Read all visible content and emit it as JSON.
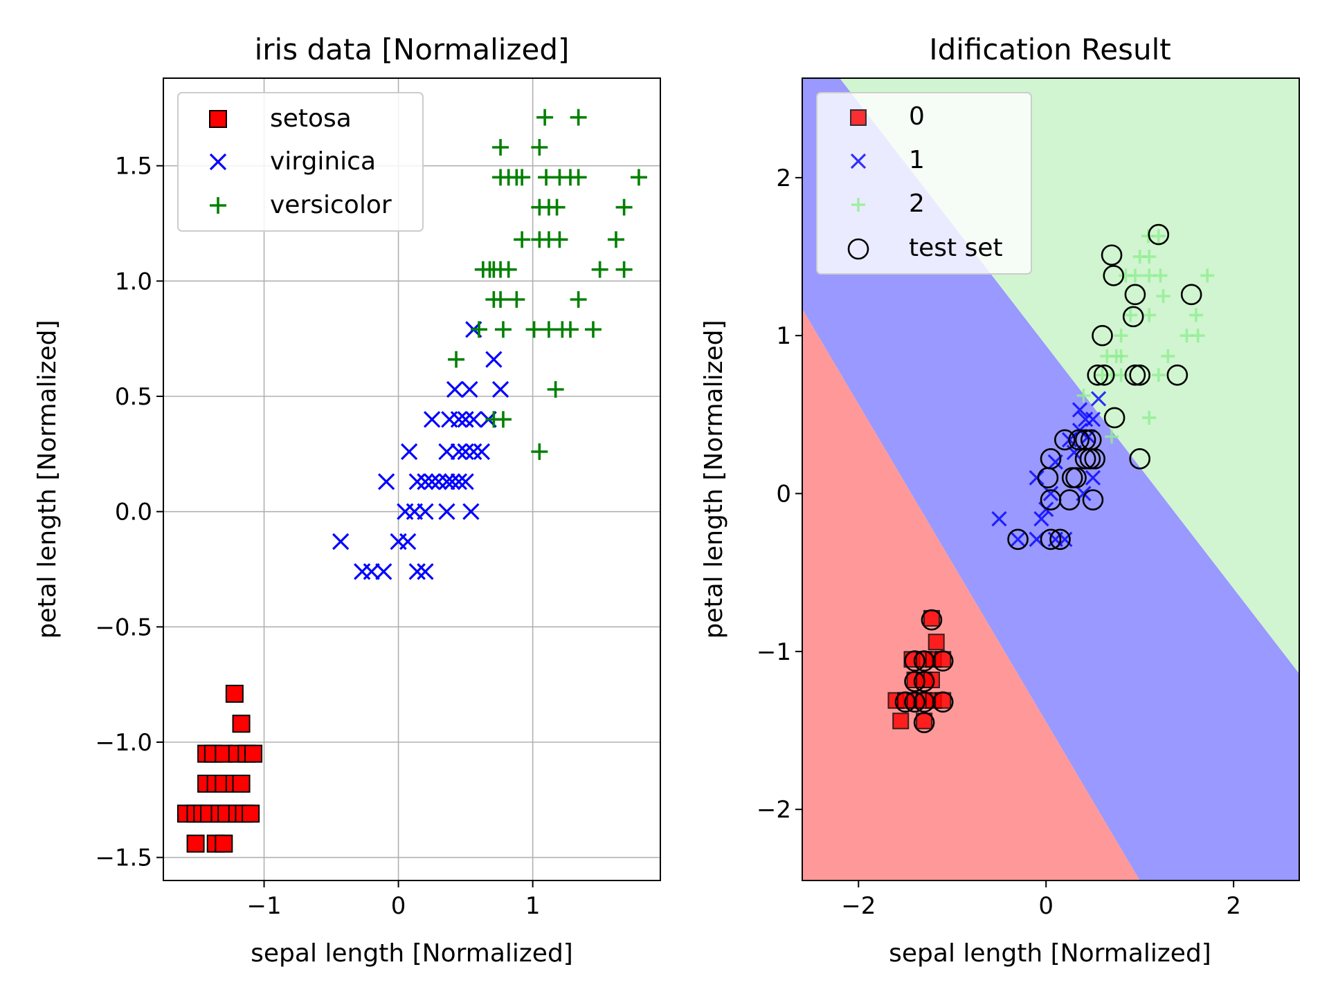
{
  "chart_data": [
    {
      "type": "scatter",
      "title": "iris data [Normalized]",
      "xlabel": "sepal length [Normalized]",
      "ylabel": "petal length [Normalized]",
      "xlim": [
        -1.75,
        1.95
      ],
      "ylim": [
        -1.6,
        1.88
      ],
      "xticks": [
        -1,
        0,
        1
      ],
      "xtick_labels": [
        "−1",
        "0",
        "1"
      ],
      "yticks": [
        -1.5,
        -1.0,
        -0.5,
        0.0,
        0.5,
        1.0,
        1.5
      ],
      "ytick_labels": [
        "−1.5",
        "−1.0",
        "−0.5",
        "0.0",
        "0.5",
        "1.0",
        "1.5"
      ],
      "grid": true,
      "legend_position": "upper-left",
      "series": [
        {
          "name": "setosa",
          "marker": "square",
          "color": "#ff0000",
          "edge": "#000000",
          "points": [
            [
              -1.22,
              -0.79
            ],
            [
              -1.17,
              -0.92
            ],
            [
              -1.43,
              -1.05
            ],
            [
              -1.38,
              -1.05
            ],
            [
              -1.3,
              -1.05
            ],
            [
              -1.2,
              -1.05
            ],
            [
              -1.13,
              -1.05
            ],
            [
              -1.08,
              -1.05
            ],
            [
              -1.43,
              -1.18
            ],
            [
              -1.36,
              -1.18
            ],
            [
              -1.3,
              -1.18
            ],
            [
              -1.22,
              -1.18
            ],
            [
              -1.17,
              -1.18
            ],
            [
              -1.58,
              -1.31
            ],
            [
              -1.51,
              -1.31
            ],
            [
              -1.46,
              -1.31
            ],
            [
              -1.41,
              -1.31
            ],
            [
              -1.33,
              -1.31
            ],
            [
              -1.28,
              -1.31
            ],
            [
              -1.2,
              -1.31
            ],
            [
              -1.15,
              -1.31
            ],
            [
              -1.1,
              -1.31
            ],
            [
              -1.51,
              -1.44
            ],
            [
              -1.36,
              -1.44
            ],
            [
              -1.3,
              -1.44
            ]
          ]
        },
        {
          "name": "virginica",
          "marker": "x",
          "color": "#0000ff",
          "points": [
            [
              0.56,
              0.79
            ],
            [
              0.71,
              0.66
            ],
            [
              0.42,
              0.53
            ],
            [
              0.53,
              0.53
            ],
            [
              0.76,
              0.53
            ],
            [
              0.25,
              0.4
            ],
            [
              0.38,
              0.4
            ],
            [
              0.45,
              0.4
            ],
            [
              0.5,
              0.4
            ],
            [
              0.56,
              0.4
            ],
            [
              0.67,
              0.4
            ],
            [
              0.08,
              0.26
            ],
            [
              0.36,
              0.26
            ],
            [
              0.45,
              0.26
            ],
            [
              0.5,
              0.26
            ],
            [
              0.56,
              0.26
            ],
            [
              0.62,
              0.26
            ],
            [
              -0.09,
              0.13
            ],
            [
              0.14,
              0.13
            ],
            [
              0.2,
              0.13
            ],
            [
              0.25,
              0.13
            ],
            [
              0.3,
              0.13
            ],
            [
              0.36,
              0.13
            ],
            [
              0.4,
              0.13
            ],
            [
              0.45,
              0.13
            ],
            [
              0.5,
              0.13
            ],
            [
              0.05,
              0.0
            ],
            [
              0.12,
              0.0
            ],
            [
              0.2,
              0.0
            ],
            [
              0.36,
              0.0
            ],
            [
              0.54,
              0.0
            ],
            [
              -0.43,
              -0.13
            ],
            [
              0.0,
              -0.13
            ],
            [
              0.07,
              -0.13
            ],
            [
              -0.27,
              -0.26
            ],
            [
              -0.2,
              -0.26
            ],
            [
              -0.11,
              -0.26
            ],
            [
              0.14,
              -0.26
            ],
            [
              0.2,
              -0.26
            ]
          ]
        },
        {
          "name": "versicolor",
          "marker": "plus",
          "color": "#008000",
          "points": [
            [
              1.09,
              1.71
            ],
            [
              1.34,
              1.71
            ],
            [
              0.76,
              1.58
            ],
            [
              1.05,
              1.58
            ],
            [
              0.76,
              1.45
            ],
            [
              0.82,
              1.45
            ],
            [
              0.88,
              1.45
            ],
            [
              0.92,
              1.45
            ],
            [
              1.1,
              1.45
            ],
            [
              1.2,
              1.45
            ],
            [
              1.28,
              1.45
            ],
            [
              1.34,
              1.45
            ],
            [
              1.79,
              1.45
            ],
            [
              1.05,
              1.32
            ],
            [
              1.12,
              1.32
            ],
            [
              1.18,
              1.32
            ],
            [
              1.68,
              1.32
            ],
            [
              0.92,
              1.18
            ],
            [
              1.05,
              1.18
            ],
            [
              1.12,
              1.18
            ],
            [
              1.2,
              1.18
            ],
            [
              1.62,
              1.18
            ],
            [
              0.63,
              1.05
            ],
            [
              0.68,
              1.05
            ],
            [
              0.71,
              1.05
            ],
            [
              0.76,
              1.05
            ],
            [
              0.82,
              1.05
            ],
            [
              1.5,
              1.05
            ],
            [
              1.68,
              1.05
            ],
            [
              0.71,
              0.92
            ],
            [
              0.76,
              0.92
            ],
            [
              0.88,
              0.92
            ],
            [
              1.34,
              0.92
            ],
            [
              0.6,
              0.79
            ],
            [
              0.78,
              0.79
            ],
            [
              1.01,
              0.79
            ],
            [
              1.12,
              0.79
            ],
            [
              1.22,
              0.79
            ],
            [
              1.28,
              0.79
            ],
            [
              1.45,
              0.79
            ],
            [
              0.43,
              0.66
            ],
            [
              1.17,
              0.53
            ],
            [
              0.71,
              0.4
            ],
            [
              0.78,
              0.4
            ],
            [
              1.05,
              0.26
            ]
          ]
        }
      ]
    },
    {
      "type": "scatter",
      "title": "Idification Result",
      "xlabel": "sepal length [Normalized]",
      "ylabel": "petal length [Normalized]",
      "xlim": [
        -2.6,
        2.7
      ],
      "ylim": [
        -2.45,
        2.63
      ],
      "xticks": [
        -2,
        0,
        2
      ],
      "xtick_labels": [
        "−2",
        "0",
        "2"
      ],
      "yticks": [
        -2,
        -1,
        0,
        1,
        2
      ],
      "ytick_labels": [
        "−2",
        "−1",
        "0",
        "1",
        "2"
      ],
      "grid": false,
      "legend_position": "upper-left",
      "decision_regions": [
        {
          "class": "0",
          "color": "#ff9999"
        },
        {
          "class": "1",
          "color": "#9999ff"
        },
        {
          "class": "2",
          "color": "#d0f5d0"
        }
      ],
      "boundaries": [
        {
          "between": "0-1",
          "line": [
            [
              -2.6,
              1.17
            ],
            [
              1.0,
              -2.45
            ]
          ]
        },
        {
          "between": "1-2",
          "line": [
            [
              -2.2,
              2.63
            ],
            [
              2.7,
              -1.14
            ]
          ]
        }
      ],
      "series": [
        {
          "name": "0",
          "marker": "square",
          "color": "#ff0000",
          "edge": "#000000",
          "points": [
            [
              -1.22,
              -0.79
            ],
            [
              -1.17,
              -0.94
            ],
            [
              -1.43,
              -1.05
            ],
            [
              -1.3,
              -1.05
            ],
            [
              -1.2,
              -1.05
            ],
            [
              -1.1,
              -1.05
            ],
            [
              -1.4,
              -1.18
            ],
            [
              -1.3,
              -1.18
            ],
            [
              -1.22,
              -1.18
            ],
            [
              -1.6,
              -1.31
            ],
            [
              -1.5,
              -1.31
            ],
            [
              -1.4,
              -1.31
            ],
            [
              -1.3,
              -1.31
            ],
            [
              -1.2,
              -1.31
            ],
            [
              -1.1,
              -1.31
            ],
            [
              -1.55,
              -1.44
            ],
            [
              -1.3,
              -1.44
            ]
          ]
        },
        {
          "name": "1",
          "marker": "x",
          "color": "#0000ff",
          "points": [
            [
              0.36,
              0.53
            ],
            [
              0.56,
              0.6
            ],
            [
              0.42,
              0.47
            ],
            [
              0.5,
              0.47
            ],
            [
              0.25,
              0.34
            ],
            [
              0.36,
              0.4
            ],
            [
              0.45,
              0.36
            ],
            [
              0.1,
              0.2
            ],
            [
              0.3,
              0.26
            ],
            [
              -0.1,
              0.1
            ],
            [
              0.05,
              0.0
            ],
            [
              0.4,
              0.0
            ],
            [
              0.5,
              0.1
            ],
            [
              -0.5,
              -0.16
            ],
            [
              -0.05,
              -0.16
            ],
            [
              0.0,
              -0.1
            ],
            [
              -0.3,
              -0.29
            ],
            [
              -0.1,
              -0.29
            ],
            [
              0.1,
              -0.29
            ],
            [
              0.2,
              -0.29
            ]
          ]
        },
        {
          "name": "2",
          "marker": "plus",
          "color": "#90ee90",
          "points": [
            [
              1.09,
              1.63
            ],
            [
              1.2,
              1.63
            ],
            [
              1.0,
              1.5
            ],
            [
              1.1,
              1.5
            ],
            [
              0.85,
              1.38
            ],
            [
              0.95,
              1.38
            ],
            [
              1.1,
              1.38
            ],
            [
              1.22,
              1.38
            ],
            [
              1.72,
              1.38
            ],
            [
              1.25,
              1.25
            ],
            [
              0.9,
              1.13
            ],
            [
              1.1,
              1.13
            ],
            [
              1.6,
              1.13
            ],
            [
              0.8,
              1.0
            ],
            [
              1.5,
              1.0
            ],
            [
              1.62,
              1.0
            ],
            [
              0.65,
              0.87
            ],
            [
              0.75,
              0.87
            ],
            [
              0.8,
              0.87
            ],
            [
              1.3,
              0.87
            ],
            [
              0.7,
              0.75
            ],
            [
              0.8,
              0.75
            ],
            [
              1.2,
              0.75
            ],
            [
              0.4,
              0.62
            ],
            [
              0.6,
              0.75
            ],
            [
              1.1,
              0.48
            ],
            [
              0.7,
              0.36
            ]
          ]
        },
        {
          "name": "test set",
          "marker": "circle-open",
          "color": "#000000",
          "points": [
            [
              1.2,
              1.64
            ],
            [
              0.7,
              1.51
            ],
            [
              0.72,
              1.38
            ],
            [
              1.55,
              1.26
            ],
            [
              0.95,
              1.26
            ],
            [
              0.93,
              1.12
            ],
            [
              0.6,
              1.0
            ],
            [
              0.55,
              0.75
            ],
            [
              0.62,
              0.75
            ],
            [
              0.95,
              0.75
            ],
            [
              1.0,
              0.75
            ],
            [
              1.4,
              0.75
            ],
            [
              0.73,
              0.48
            ],
            [
              0.2,
              0.34
            ],
            [
              0.35,
              0.34
            ],
            [
              0.42,
              0.34
            ],
            [
              0.48,
              0.34
            ],
            [
              0.42,
              0.22
            ],
            [
              0.52,
              0.22
            ],
            [
              0.05,
              0.22
            ],
            [
              0.32,
              0.1
            ],
            [
              0.28,
              0.1
            ],
            [
              0.02,
              0.1
            ],
            [
              0.47,
              0.22
            ],
            [
              0.05,
              -0.04
            ],
            [
              0.25,
              -0.04
            ],
            [
              0.5,
              -0.04
            ],
            [
              -0.3,
              -0.29
            ],
            [
              0.05,
              -0.29
            ],
            [
              0.15,
              -0.29
            ],
            [
              1.0,
              0.22
            ],
            [
              -1.22,
              -0.8
            ],
            [
              -1.4,
              -1.06
            ],
            [
              -1.3,
              -1.06
            ],
            [
              -1.1,
              -1.06
            ],
            [
              -1.4,
              -1.19
            ],
            [
              -1.3,
              -1.19
            ],
            [
              -1.5,
              -1.32
            ],
            [
              -1.4,
              -1.32
            ],
            [
              -1.3,
              -1.32
            ],
            [
              -1.1,
              -1.32
            ],
            [
              -1.3,
              -1.45
            ]
          ]
        }
      ]
    }
  ]
}
